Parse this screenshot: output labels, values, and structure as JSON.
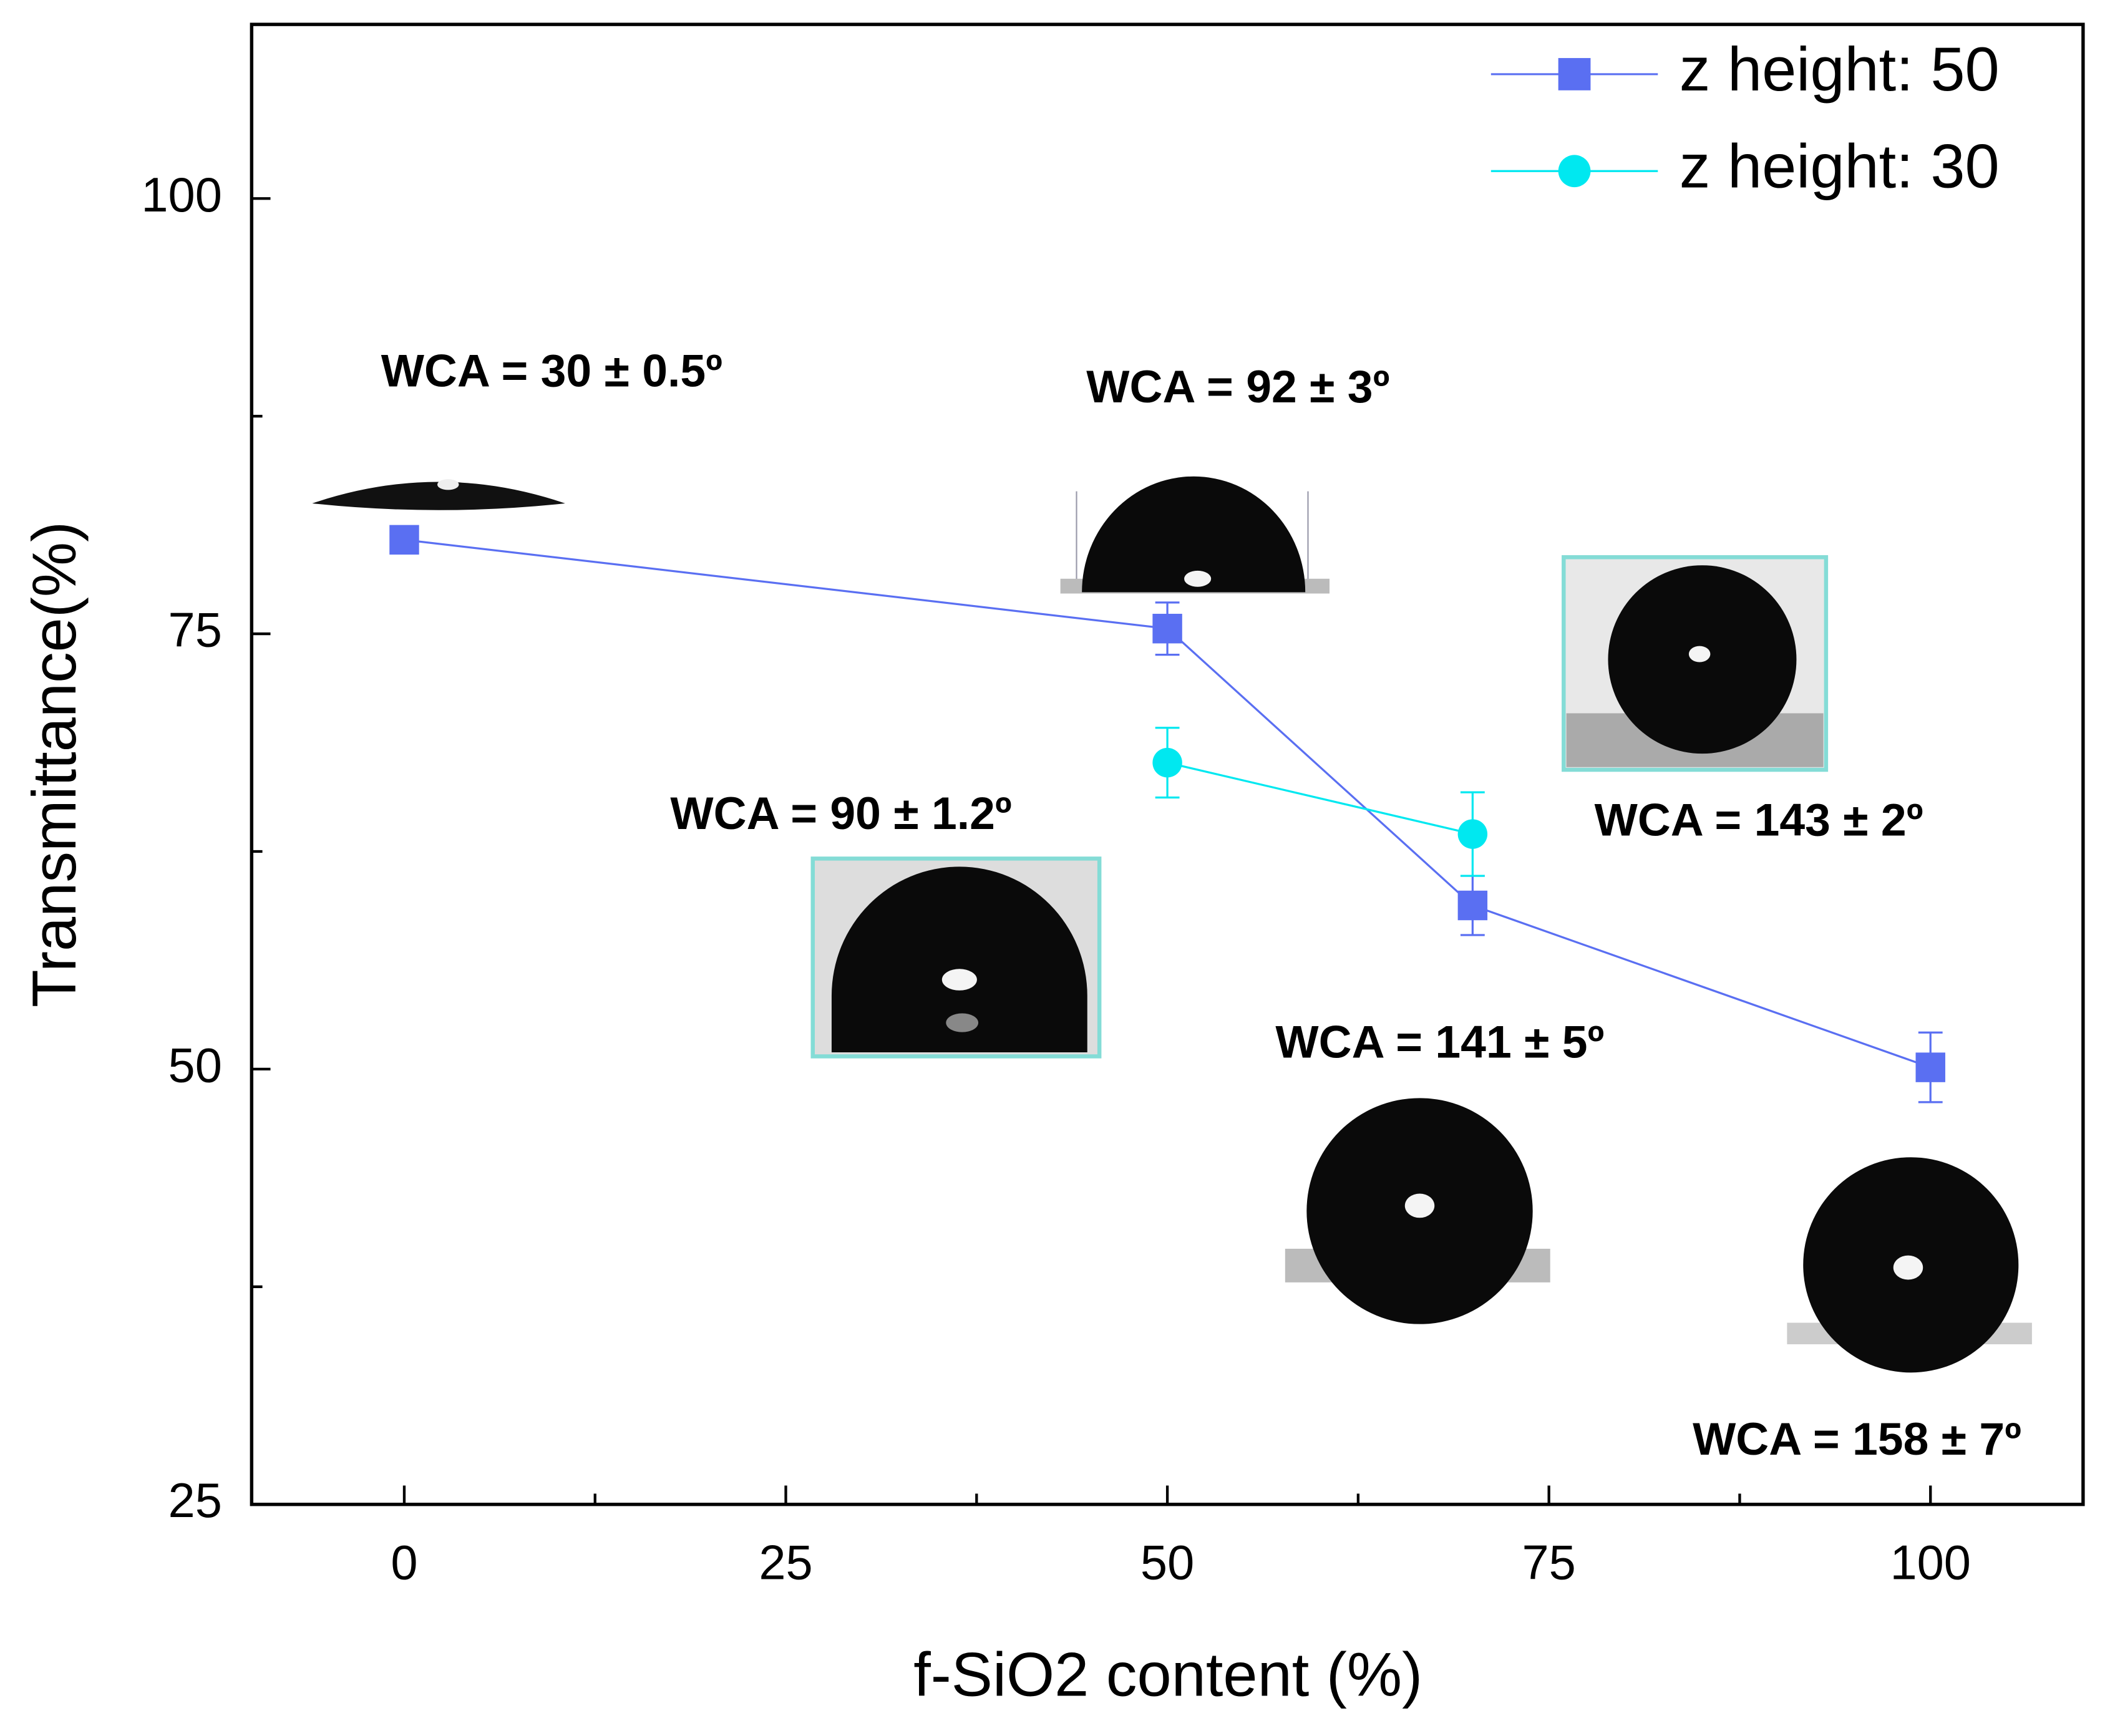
{
  "chart_data": {
    "type": "line",
    "x_label": "f-SiO2 content (%)",
    "y_label": "Transmittance(%)",
    "xlim": [
      -10,
      110
    ],
    "ylim": [
      25,
      110
    ],
    "xticks": [
      0,
      25,
      50,
      75,
      100
    ],
    "yticks": [
      25,
      50,
      75,
      100
    ],
    "xminor": [
      12.5,
      37.5,
      62.5,
      87.5
    ],
    "yminor": [
      37.5,
      62.5,
      87.5
    ],
    "legend": "upper right",
    "series": [
      {
        "name": "z height: 50",
        "color": "#5a6ff2",
        "marker": "square",
        "x": [
          0,
          50,
          70,
          100
        ],
        "values": [
          80.4,
          75.3,
          59.4,
          50.1
        ],
        "errors": [
          0.7,
          1.5,
          1.7,
          2
        ]
      },
      {
        "name": "z height: 30",
        "color": "#00e8f0",
        "marker": "circle",
        "x": [
          50,
          70
        ],
        "values": [
          67.6,
          63.5
        ],
        "errors": [
          2,
          2.4
        ]
      }
    ],
    "annotations": [
      "WCA = 30 ± 0.5º",
      "WCA = 92 ± 3º",
      "WCA = 90 ± 1.2º",
      "WCA = 143 ± 2º",
      "WCA = 141 ± 5º",
      "WCA = 158 ± 7º"
    ]
  }
}
